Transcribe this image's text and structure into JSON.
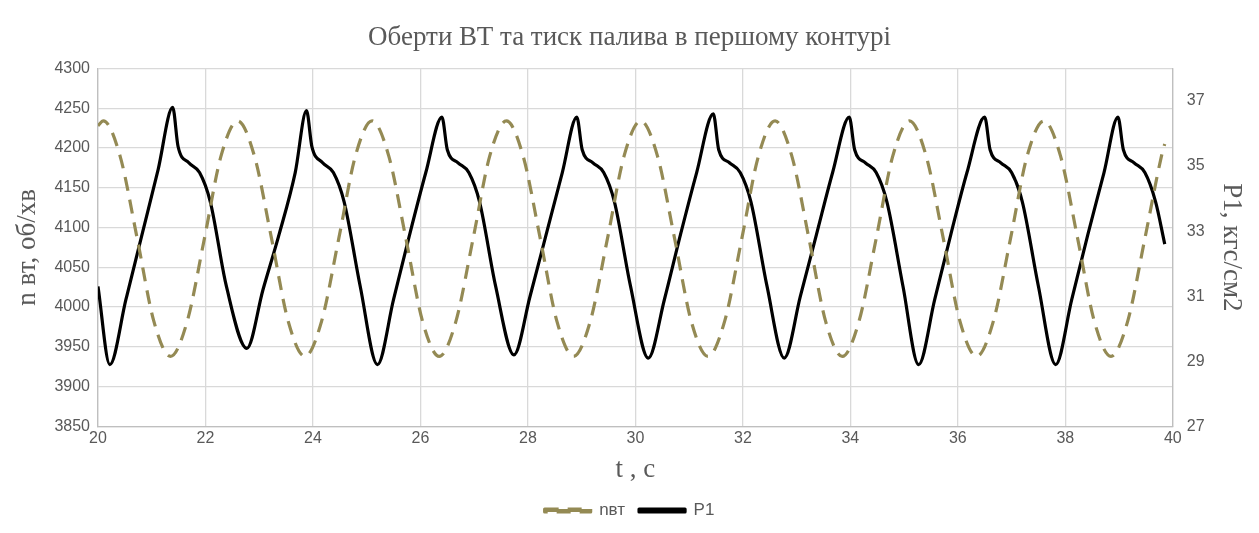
{
  "chart_data": {
    "type": "line",
    "title": "Оберти ВТ та тиск палива в першому контурі",
    "xlabel": "t , с",
    "ylabel": "n вт, об/хв",
    "y2label": "P1, кгс/см2",
    "xlim": [
      20,
      40
    ],
    "xticks": [
      20,
      22,
      24,
      26,
      28,
      30,
      32,
      34,
      36,
      38,
      40
    ],
    "ylim": [
      3850,
      4300
    ],
    "yticks": [
      3850,
      3900,
      3950,
      4000,
      4050,
      4100,
      4150,
      4200,
      4250,
      4300
    ],
    "y2lim": [
      27,
      38
    ],
    "y2ticks": [
      27,
      29,
      31,
      33,
      35,
      37
    ],
    "grid": true,
    "legend": "bottom",
    "marker": "none",
    "series": [
      {
        "name": "nвт",
        "color": "#948a54",
        "line_style": "dashed",
        "x": [
          20,
          20.1,
          20.41,
          20.73,
          21.04,
          21.35,
          21.66,
          21.98,
          22.29,
          22.6,
          22.91,
          23.23,
          23.54,
          23.85,
          24.16,
          24.48,
          24.79,
          25.1,
          25.41,
          25.73,
          26.04,
          26.35,
          26.66,
          26.98,
          27.29,
          27.6,
          27.91,
          28.23,
          28.54,
          28.85,
          29.16,
          29.48,
          29.79,
          30.1,
          30.41,
          30.73,
          31.04,
          31.35,
          31.66,
          31.98,
          32.29,
          32.6,
          32.91,
          33.23,
          33.54,
          33.85,
          34.16,
          34.48,
          34.79,
          35.1,
          35.41,
          35.73,
          36.04,
          36.35,
          36.66,
          36.98,
          37.29,
          37.6,
          37.91,
          38.23,
          38.54,
          38.85,
          39.16,
          39.48,
          39.79,
          39.85
        ],
        "values": [
          4228,
          4234,
          4190,
          4086,
          3982,
          3938,
          3982,
          4086,
          4190,
          4234,
          4190,
          4086,
          3982,
          3938,
          3982,
          4086,
          4190,
          4234,
          4190,
          4086,
          3982,
          3938,
          3982,
          4086,
          4190,
          4234,
          4190,
          4086,
          3982,
          3938,
          3982,
          4086,
          4190,
          4234,
          4190,
          4086,
          3982,
          3938,
          3982,
          4086,
          4190,
          4234,
          4190,
          4086,
          3982,
          3938,
          3982,
          4086,
          4190,
          4234,
          4190,
          4086,
          3982,
          3938,
          3982,
          4086,
          4190,
          4234,
          4190,
          4086,
          3982,
          3938,
          3982,
          4086,
          4190,
          4205
        ]
      },
      {
        "name": "P1",
        "color": "#000000",
        "line_style": "solid",
        "axis": "y2",
        "x": [
          20,
          20.22,
          20.52,
          20.82,
          21.12,
          21.39,
          21.49,
          21.69,
          21.89,
          22.09,
          22.39,
          22.77,
          23.07,
          23.37,
          23.67,
          23.88,
          23.98,
          24.18,
          24.38,
          24.58,
          24.88,
          25.2,
          25.5,
          25.8,
          26.1,
          26.4,
          26.5,
          26.7,
          26.9,
          27.1,
          27.4,
          27.74,
          28.04,
          28.34,
          28.64,
          28.91,
          29.01,
          29.21,
          29.41,
          29.61,
          29.91,
          30.24,
          30.54,
          30.84,
          31.14,
          31.45,
          31.55,
          31.75,
          31.95,
          32.15,
          32.45,
          32.77,
          33.07,
          33.37,
          33.67,
          33.98,
          34.08,
          34.28,
          34.48,
          34.68,
          34.98,
          35.27,
          35.57,
          35.87,
          36.17,
          36.5,
          36.6,
          36.8,
          37.0,
          37.2,
          37.5,
          37.82,
          38.12,
          38.42,
          38.72,
          38.98,
          39.08,
          39.28,
          39.48,
          39.68,
          39.85
        ],
        "values": [
          31.3,
          28.9,
          30.9,
          32.9,
          34.9,
          36.8,
          35.6,
          35.1,
          34.8,
          33.9,
          31.3,
          29.4,
          31.2,
          32.9,
          34.8,
          36.7,
          35.6,
          35.1,
          34.8,
          33.9,
          31.3,
          28.9,
          30.9,
          32.9,
          34.8,
          36.5,
          35.5,
          35.1,
          34.8,
          33.9,
          31.3,
          29.2,
          31.0,
          32.9,
          34.8,
          36.5,
          35.5,
          35.1,
          34.8,
          33.9,
          31.3,
          29.1,
          30.9,
          32.9,
          34.8,
          36.6,
          35.5,
          35.1,
          34.8,
          33.9,
          31.3,
          29.1,
          31.0,
          32.9,
          34.8,
          36.5,
          35.5,
          35.1,
          34.8,
          33.9,
          31.3,
          28.9,
          30.9,
          32.9,
          34.8,
          36.5,
          35.5,
          35.1,
          34.8,
          33.9,
          31.3,
          28.9,
          30.9,
          32.9,
          34.8,
          36.5,
          35.5,
          35.1,
          34.8,
          33.9,
          32.6
        ]
      }
    ]
  }
}
